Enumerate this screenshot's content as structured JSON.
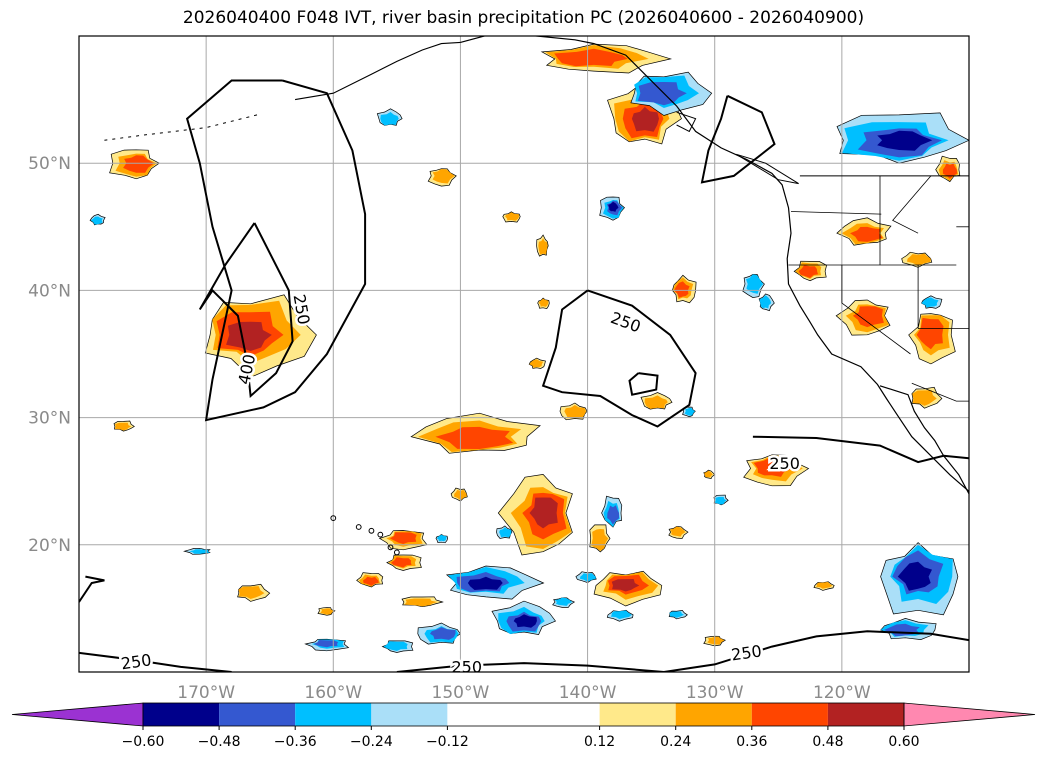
{
  "chart_data": {
    "type": "map-contour",
    "title": "2026040400 F048 IVT, river basin precipitation PC (2026040600 - 2026040900)",
    "lon_range": [
      -180,
      -110
    ],
    "lat_range": [
      10,
      60
    ],
    "x_ticks": [
      {
        "value": -170,
        "label": "170°W"
      },
      {
        "value": -160,
        "label": "160°W"
      },
      {
        "value": -150,
        "label": "150°W"
      },
      {
        "value": -140,
        "label": "140°W"
      },
      {
        "value": -130,
        "label": "130°W"
      },
      {
        "value": -120,
        "label": "120°W"
      }
    ],
    "y_ticks": [
      {
        "value": 20,
        "label": "20°N"
      },
      {
        "value": 30,
        "label": "30°N"
      },
      {
        "value": 40,
        "label": "40°N"
      },
      {
        "value": 50,
        "label": "50°N"
      }
    ],
    "grid": true,
    "ivt_contour_levels": [
      250,
      400
    ],
    "contour_labels": [
      {
        "text": "250",
        "lon": -162.5,
        "lat": 38.5,
        "angle": 80
      },
      {
        "text": "400",
        "lon": -166.8,
        "lat": 33.8,
        "angle": -78
      },
      {
        "text": "250",
        "lon": -137,
        "lat": 37.5,
        "angle": 20
      },
      {
        "text": "250",
        "lon": -124.5,
        "lat": 26.4,
        "angle": 0
      },
      {
        "text": "250",
        "lon": -175.5,
        "lat": 10.8,
        "angle": -8
      },
      {
        "text": "250",
        "lon": -149.5,
        "lat": 10.4,
        "angle": 0
      },
      {
        "text": "250",
        "lon": -127.5,
        "lat": 11.5,
        "angle": -8
      }
    ],
    "colorbar": {
      "ticks": [
        "−0.60",
        "−0.48",
        "−0.36",
        "−0.24",
        "−0.12",
        "0.12",
        "0.24",
        "0.36",
        "0.48",
        "0.60"
      ],
      "tick_values": [
        -0.6,
        -0.48,
        -0.36,
        -0.24,
        -0.12,
        0.12,
        0.24,
        0.36,
        0.48,
        0.6
      ],
      "colors": [
        "#9b32d2",
        "#00008b",
        "#3458d0",
        "#00bfff",
        "#aadff8",
        "#ffffff",
        "#ffe98a",
        "#ffa500",
        "#ff4500",
        "#b22222",
        "#ff88b0"
      ],
      "extend": "both"
    }
  }
}
